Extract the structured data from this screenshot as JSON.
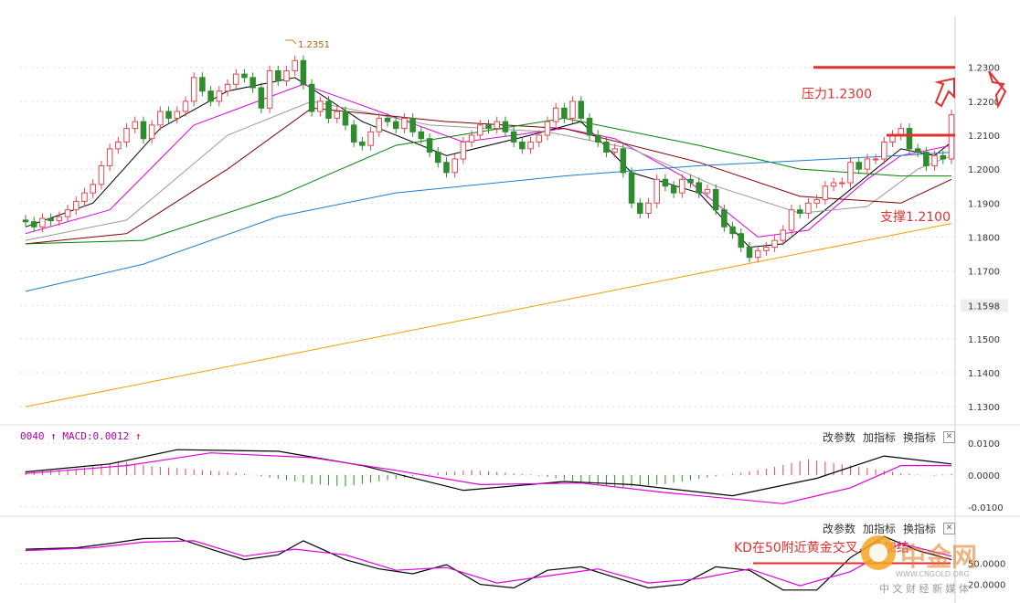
{
  "chart_data": {
    "type": "candlestick",
    "price_axis": {
      "ticks": [
        "1.2300",
        "1.2200",
        "1.2100",
        "1.2000",
        "1.1900",
        "1.1800",
        "1.1700",
        "1.1598",
        "1.1500",
        "1.1400",
        "1.1300"
      ],
      "range": [
        1.126,
        1.245
      ],
      "current_label": "1.1598"
    },
    "price_series": {
      "open": [
        1.185,
        1.1845,
        1.183,
        1.1855,
        1.1848,
        1.186,
        1.188,
        1.1905,
        1.193,
        1.1955,
        1.201,
        1.206,
        1.208,
        1.212,
        1.214,
        1.209,
        1.213,
        1.217,
        1.215,
        1.217,
        1.22,
        1.227,
        1.223,
        1.22,
        1.223,
        1.225,
        1.228,
        1.227,
        1.224,
        1.218,
        1.229,
        1.226,
        1.229,
        1.232,
        1.225,
        1.217,
        1.22,
        1.215,
        1.217,
        1.213,
        1.208,
        1.207,
        1.211,
        1.215,
        1.214,
        1.212,
        1.215,
        1.211,
        1.209,
        1.205,
        1.202,
        1.199,
        1.203,
        1.208,
        1.21,
        1.213,
        1.212,
        1.214,
        1.211,
        1.208,
        1.206,
        1.208,
        1.21,
        1.214,
        1.218,
        1.215,
        1.22,
        1.215,
        1.21,
        1.208,
        1.205,
        1.206,
        1.199,
        1.19,
        1.187,
        1.19,
        1.197,
        1.195,
        1.193,
        1.197,
        1.196,
        1.193,
        1.194,
        1.188,
        1.183,
        1.181,
        1.177,
        1.174,
        1.176,
        1.177,
        1.179,
        1.182,
        1.188,
        1.187,
        1.19,
        1.191,
        1.195,
        1.196,
        1.196,
        1.202,
        1.2,
        1.203,
        1.203,
        1.208,
        1.21,
        1.212,
        1.206,
        1.205,
        1.201,
        1.204,
        1.203
      ],
      "close": [
        1.1845,
        1.183,
        1.1855,
        1.1848,
        1.186,
        1.188,
        1.1905,
        1.193,
        1.1955,
        1.201,
        1.206,
        1.208,
        1.212,
        1.214,
        1.209,
        1.213,
        1.217,
        1.215,
        1.217,
        1.22,
        1.227,
        1.223,
        1.22,
        1.223,
        1.225,
        1.228,
        1.227,
        1.224,
        1.218,
        1.229,
        1.226,
        1.229,
        1.232,
        1.225,
        1.217,
        1.22,
        1.215,
        1.217,
        1.213,
        1.208,
        1.207,
        1.211,
        1.215,
        1.214,
        1.212,
        1.215,
        1.211,
        1.209,
        1.205,
        1.202,
        1.199,
        1.203,
        1.208,
        1.21,
        1.213,
        1.212,
        1.214,
        1.211,
        1.208,
        1.206,
        1.208,
        1.21,
        1.214,
        1.218,
        1.215,
        1.22,
        1.215,
        1.21,
        1.208,
        1.205,
        1.206,
        1.199,
        1.19,
        1.187,
        1.19,
        1.197,
        1.195,
        1.193,
        1.197,
        1.196,
        1.193,
        1.194,
        1.188,
        1.183,
        1.181,
        1.177,
        1.174,
        1.176,
        1.177,
        1.179,
        1.182,
        1.188,
        1.187,
        1.19,
        1.191,
        1.195,
        1.196,
        1.196,
        1.202,
        1.2,
        1.203,
        1.203,
        1.208,
        1.21,
        1.212,
        1.206,
        1.205,
        1.201,
        1.204,
        1.203,
        1.216
      ],
      "moving_averages": [
        {
          "color": "#000000",
          "points": [
            [
              0,
              1.183
            ],
            [
              8,
              1.19
            ],
            [
              16,
              1.212
            ],
            [
              24,
              1.223
            ],
            [
              32,
              1.227
            ],
            [
              40,
              1.214
            ],
            [
              50,
              1.204
            ],
            [
              60,
              1.21
            ],
            [
              66,
              1.214
            ],
            [
              72,
              1.199
            ],
            [
              80,
              1.193
            ],
            [
              86,
              1.177
            ],
            [
              90,
              1.178
            ],
            [
              96,
              1.19
            ],
            [
              104,
              1.206
            ],
            [
              108,
              1.204
            ],
            [
              110,
              1.208
            ]
          ]
        },
        {
          "color": "#e000e0",
          "points": [
            [
              0,
              1.181
            ],
            [
              10,
              1.188
            ],
            [
              20,
              1.213
            ],
            [
              33,
              1.225
            ],
            [
              42,
              1.217
            ],
            [
              52,
              1.208
            ],
            [
              64,
              1.212
            ],
            [
              70,
              1.209
            ],
            [
              78,
              1.198
            ],
            [
              87,
              1.18
            ],
            [
              93,
              1.182
            ],
            [
              100,
              1.197
            ],
            [
              104,
              1.204
            ],
            [
              110,
              1.207
            ]
          ]
        },
        {
          "color": "#999999",
          "points": [
            [
              0,
              1.179
            ],
            [
              12,
              1.185
            ],
            [
              24,
              1.21
            ],
            [
              34,
              1.22
            ],
            [
              48,
              1.213
            ],
            [
              62,
              1.211
            ],
            [
              72,
              1.206
            ],
            [
              82,
              1.195
            ],
            [
              92,
              1.187
            ],
            [
              100,
              1.189
            ],
            [
              106,
              1.2
            ],
            [
              110,
              1.204
            ]
          ]
        },
        {
          "color": "#800000",
          "points": [
            [
              0,
              1.178
            ],
            [
              12,
              1.181
            ],
            [
              24,
              1.2
            ],
            [
              34,
              1.218
            ],
            [
              50,
              1.214
            ],
            [
              64,
              1.212
            ],
            [
              80,
              1.202
            ],
            [
              92,
              1.192
            ],
            [
              104,
              1.19
            ],
            [
              110,
              1.197
            ]
          ]
        },
        {
          "color": "#008000",
          "points": [
            [
              0,
              1.178
            ],
            [
              14,
              1.179
            ],
            [
              30,
              1.192
            ],
            [
              44,
              1.207
            ],
            [
              64,
              1.215
            ],
            [
              80,
              1.207
            ],
            [
              92,
              1.2
            ],
            [
              104,
              1.198
            ],
            [
              110,
              1.198
            ]
          ]
        },
        {
          "color": "#1e7bd0",
          "points": [
            [
              0,
              1.164
            ],
            [
              14,
              1.172
            ],
            [
              30,
              1.186
            ],
            [
              44,
              1.193
            ],
            [
              64,
              1.198
            ],
            [
              80,
              1.201
            ],
            [
              104,
              1.204
            ],
            [
              110,
              1.205
            ]
          ]
        },
        {
          "color": "#f0a000",
          "points": [
            [
              0,
              1.13
            ],
            [
              110,
              1.184
            ]
          ]
        }
      ]
    },
    "peak_annotation": "1.2351",
    "levels": [
      {
        "label": "压力1.2300",
        "value": 1.23
      },
      {
        "label": "支撑1.2100",
        "value": 1.21
      }
    ],
    "macd_panel": {
      "header": "0040 ↑ MACD:0.0012 ↑",
      "ticks": [
        "0.0100",
        "0.0000",
        "-0.0100"
      ],
      "range": [
        -0.0115,
        0.0115
      ],
      "dif": [
        [
          0,
          0.001
        ],
        [
          10,
          0.0035
        ],
        [
          18,
          0.008
        ],
        [
          30,
          0.0075
        ],
        [
          40,
          0.003
        ],
        [
          52,
          -0.0048
        ],
        [
          64,
          -0.002
        ],
        [
          72,
          -0.003
        ],
        [
          84,
          -0.0065
        ],
        [
          94,
          -0.001
        ],
        [
          102,
          0.006
        ],
        [
          110,
          0.0035
        ]
      ],
      "dea": [
        [
          0,
          0.0005
        ],
        [
          12,
          0.003
        ],
        [
          22,
          0.007
        ],
        [
          34,
          0.0055
        ],
        [
          44,
          0.0015
        ],
        [
          54,
          -0.003
        ],
        [
          66,
          -0.0025
        ],
        [
          76,
          -0.0055
        ],
        [
          90,
          -0.009
        ],
        [
          98,
          -0.004
        ],
        [
          104,
          0.003
        ],
        [
          110,
          0.003
        ]
      ],
      "histogram": [
        0.0012,
        0.0013,
        0.0014,
        0.0015,
        0.0016,
        0.0018,
        0.002,
        0.0024,
        0.0028,
        0.0032,
        0.0038,
        0.0044,
        0.004,
        0.0036,
        0.0032,
        0.0028,
        0.0026,
        0.0024,
        0.0022,
        0.002,
        0.0018,
        0.0016,
        0.0014,
        0.0012,
        0.001,
        0.0008,
        0.0004,
        0.0,
        -0.0004,
        -0.0008,
        -0.0012,
        -0.0016,
        -0.002,
        -0.0024,
        -0.0028,
        -0.003,
        -0.0032,
        -0.0034,
        -0.0036,
        -0.0032,
        -0.0028,
        -0.0024,
        -0.002,
        -0.0016,
        -0.0012,
        -0.0008,
        -0.0004,
        0.0,
        0.0004,
        0.0008,
        0.001,
        0.0012,
        0.0014,
        0.0016,
        0.0014,
        0.0012,
        0.001,
        0.0008,
        0.0006,
        0.0004,
        0.0002,
        -0.0002,
        -0.0006,
        -0.001,
        -0.0014,
        -0.0018,
        -0.0022,
        -0.0026,
        -0.003,
        -0.0034,
        -0.0036,
        -0.0038,
        -0.0036,
        -0.0034,
        -0.0032,
        -0.003,
        -0.0028,
        -0.0024,
        -0.002,
        -0.0016,
        -0.0012,
        -0.0008,
        -0.0004,
        0.0,
        0.0004,
        0.0008,
        0.0012,
        0.0016,
        0.002,
        0.0026,
        0.0032,
        0.0038,
        0.0044,
        0.005,
        0.0046,
        0.0042,
        0.0038,
        0.0034,
        0.003,
        0.0026,
        0.0022,
        0.0018,
        0.0014,
        0.001,
        0.0006,
        0.0004,
        0.0002,
        0.0,
        -0.0002,
        0.0002,
        0.0004
      ]
    },
    "kd_panel": {
      "ticks": [
        "50.0000",
        "20.0000"
      ],
      "annotation": "KD在50附近黄金交叉，叠加结",
      "k": [
        [
          0,
          70
        ],
        [
          6,
          72
        ],
        [
          10,
          78
        ],
        [
          14,
          85
        ],
        [
          18,
          86
        ],
        [
          22,
          70
        ],
        [
          26,
          55
        ],
        [
          30,
          62
        ],
        [
          33,
          82
        ],
        [
          38,
          55
        ],
        [
          42,
          42
        ],
        [
          46,
          35
        ],
        [
          50,
          48
        ],
        [
          54,
          20
        ],
        [
          58,
          15
        ],
        [
          62,
          40
        ],
        [
          66,
          45
        ],
        [
          70,
          30
        ],
        [
          74,
          15
        ],
        [
          78,
          20
        ],
        [
          82,
          45
        ],
        [
          86,
          40
        ],
        [
          90,
          12
        ],
        [
          94,
          12
        ],
        [
          98,
          58
        ],
        [
          102,
          88
        ],
        [
          106,
          68
        ],
        [
          110,
          55
        ]
      ],
      "d": [
        [
          0,
          68
        ],
        [
          8,
          72
        ],
        [
          14,
          80
        ],
        [
          20,
          82
        ],
        [
          26,
          60
        ],
        [
          32,
          70
        ],
        [
          38,
          62
        ],
        [
          44,
          40
        ],
        [
          50,
          44
        ],
        [
          56,
          22
        ],
        [
          62,
          32
        ],
        [
          68,
          42
        ],
        [
          74,
          22
        ],
        [
          80,
          28
        ],
        [
          86,
          42
        ],
        [
          92,
          18
        ],
        [
          98,
          38
        ],
        [
          104,
          78
        ],
        [
          110,
          60
        ]
      ]
    }
  },
  "controls": {
    "change_params": "改参数",
    "add_indicator": "加指标",
    "switch_indicator": "换指标",
    "close": "✕"
  },
  "watermark": {
    "name": "中金网",
    "subtitle": "中 文 财 经 新 媒 体",
    "url": "WWW.CNGOLD.ORG"
  },
  "colors": {
    "up": "#e0484f",
    "down": "#2e8b2e",
    "annotation": "#e03030",
    "dif": "#000000",
    "dea": "#e000e0",
    "grid": "#dddddd"
  }
}
